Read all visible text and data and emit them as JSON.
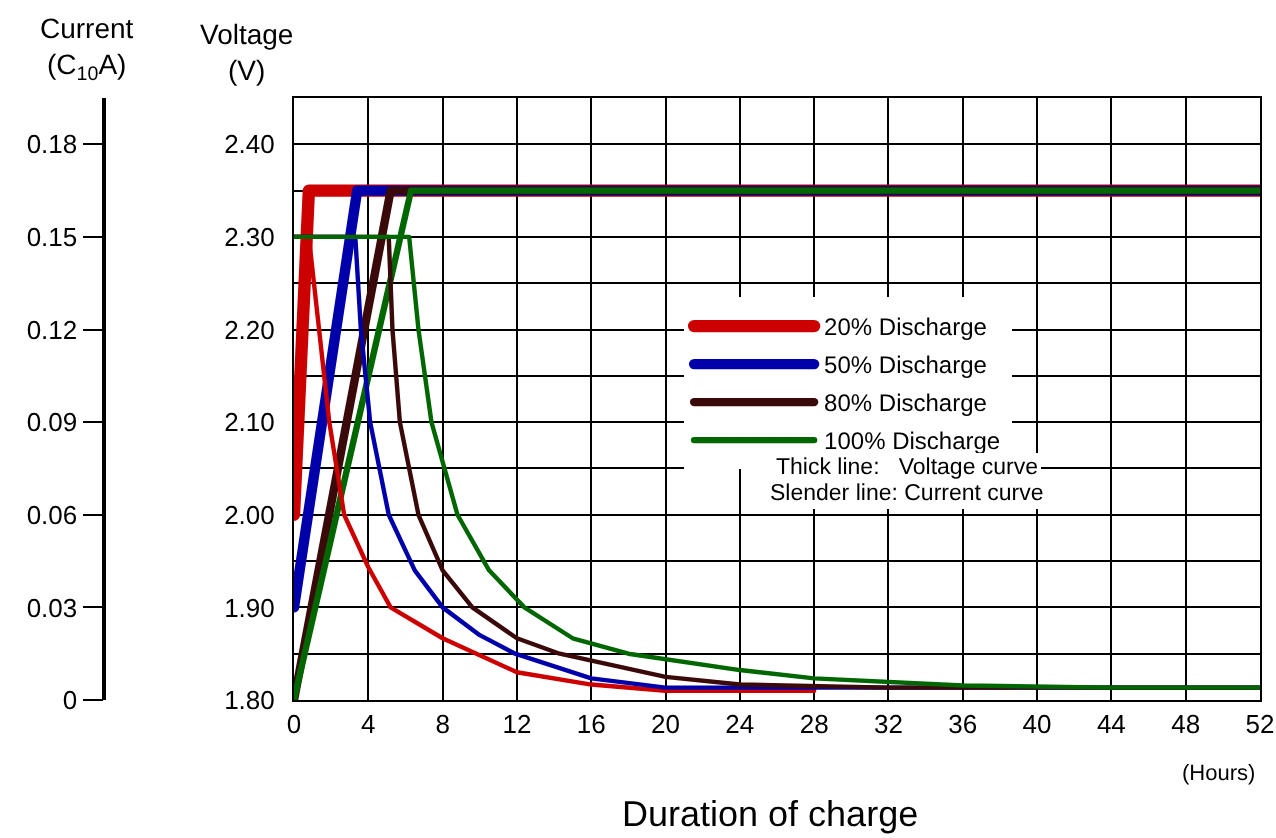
{
  "chart_data": {
    "type": "line",
    "xlabel": "Duration of charge",
    "ylabel": "Voltage\n(V)",
    "y2label": "Current\n(C$_{10}$A)",
    "xlim": [
      0,
      52
    ],
    "xticks": [
      0,
      4,
      8,
      12,
      16,
      20,
      24,
      28,
      32,
      36,
      40,
      44,
      48,
      52
    ],
    "ylim": [
      1.8,
      2.45
    ],
    "yticks": [
      {
        "value": 1.8,
        "label": "1.80"
      },
      {
        "value": 1.85,
        "label": null
      },
      {
        "value": 1.9,
        "label": "1.90"
      },
      {
        "value": 1.95,
        "label": null
      },
      {
        "value": 2.0,
        "label": "2.00"
      },
      {
        "value": 2.05,
        "label": null
      },
      {
        "value": 2.1,
        "label": "2.10"
      },
      {
        "value": 2.15,
        "label": null
      },
      {
        "value": 2.2,
        "label": "2.20"
      },
      {
        "value": 2.25,
        "label": null
      },
      {
        "value": 2.3,
        "label": "2.30"
      },
      {
        "value": 2.35,
        "label": null
      },
      {
        "value": 2.4,
        "label": "2.40"
      }
    ],
    "y2lim": [
      0,
      0.195
    ],
    "y2ticks": [
      0,
      0.03,
      0.06,
      0.09,
      0.12,
      0.15,
      0.18
    ],
    "grid": true,
    "legend": "right",
    "line_style": "solid",
    "marker": "none",
    "annotations": [
      "Thick line:   Voltage curve",
      "Slender line: Current curve",
      "(Hours)"
    ],
    "series": [
      {
        "name": "20% Discharge",
        "color": "#cc0000",
        "x": [
          0,
          0.8,
          52
        ],
        "values": [
          2.0,
          2.35,
          2.35
        ]
      },
      {
        "name": "50% Discharge",
        "color": "#0000aa",
        "x": [
          0,
          3.4,
          52
        ],
        "values": [
          1.9,
          2.35,
          2.35
        ]
      },
      {
        "name": "80% Discharge",
        "color": "#3a0a0a",
        "x": [
          0,
          5.2,
          52
        ],
        "values": [
          1.8,
          2.35,
          2.35
        ]
      },
      {
        "name": "100% Discharge",
        "color": "#006600",
        "x": [
          0,
          6.3,
          52
        ],
        "values": [
          1.8,
          2.35,
          2.35
        ]
      },
      {
        "color": "#cc0000",
        "axis": "y2",
        "x": [
          0,
          0.8,
          1.9,
          2.7,
          4,
          5.2,
          8,
          12,
          16,
          20,
          28
        ],
        "values": [
          0.15,
          0.15,
          0.09,
          0.06,
          0.043,
          0.03,
          0.02,
          0.009,
          0.005,
          0.003,
          0.003
        ]
      },
      {
        "color": "#0000aa",
        "axis": "y2",
        "x": [
          0,
          3.3,
          3.6,
          4.1,
          5.1,
          6.5,
          8,
          10,
          11.9,
          16,
          20,
          24,
          52
        ],
        "values": [
          0.15,
          0.15,
          0.12,
          0.09,
          0.06,
          0.042,
          0.03,
          0.021,
          0.015,
          0.007,
          0.004,
          0.004,
          0.004
        ]
      },
      {
        "color": "#3a0a0a",
        "axis": "y2",
        "x": [
          0,
          5.1,
          5.3,
          5.7,
          6.7,
          8,
          9.6,
          12,
          14.3,
          20,
          24,
          32,
          52
        ],
        "values": [
          0.15,
          0.15,
          0.12,
          0.09,
          0.06,
          0.042,
          0.03,
          0.02,
          0.015,
          0.0075,
          0.005,
          0.004,
          0.004
        ]
      },
      {
        "color": "#006600",
        "axis": "y2",
        "x": [
          0,
          6.2,
          6.7,
          7.4,
          8.8,
          10.5,
          12.4,
          15,
          18,
          24,
          28,
          36,
          44,
          52
        ],
        "values": [
          0.15,
          0.15,
          0.12,
          0.09,
          0.06,
          0.042,
          0.03,
          0.02,
          0.015,
          0.0097,
          0.007,
          0.0047,
          0.004,
          0.004
        ]
      }
    ]
  }
}
